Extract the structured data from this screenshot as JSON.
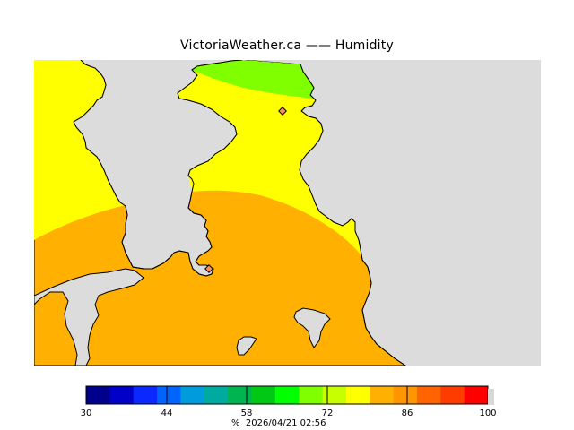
{
  "title": "VictoriaWeather.ca —— Humidity",
  "map": {
    "land_color": "#dcdcdc",
    "zones": [
      {
        "name": "high-70s",
        "color": "#ffff00"
      },
      {
        "name": "high-60s",
        "color": "#80ff00"
      },
      {
        "name": "low-80s",
        "color": "#ffb000"
      }
    ],
    "station_markers": [
      "station-1",
      "station-2"
    ]
  },
  "legend": {
    "tick_labels": [
      "30",
      "44",
      "58",
      "72",
      "86",
      "100"
    ],
    "footer": "%  2026/04/21 02:56",
    "colors": [
      "#00008c",
      "#0000c8",
      "#0a28ff",
      "#0064ff",
      "#009bdc",
      "#00aaa0",
      "#00b450",
      "#00c814",
      "#00ff00",
      "#80ff00",
      "#c8ff00",
      "#ffff00",
      "#ffb000",
      "#ff9600",
      "#ff6400",
      "#ff3c00",
      "#ff0000"
    ]
  }
}
